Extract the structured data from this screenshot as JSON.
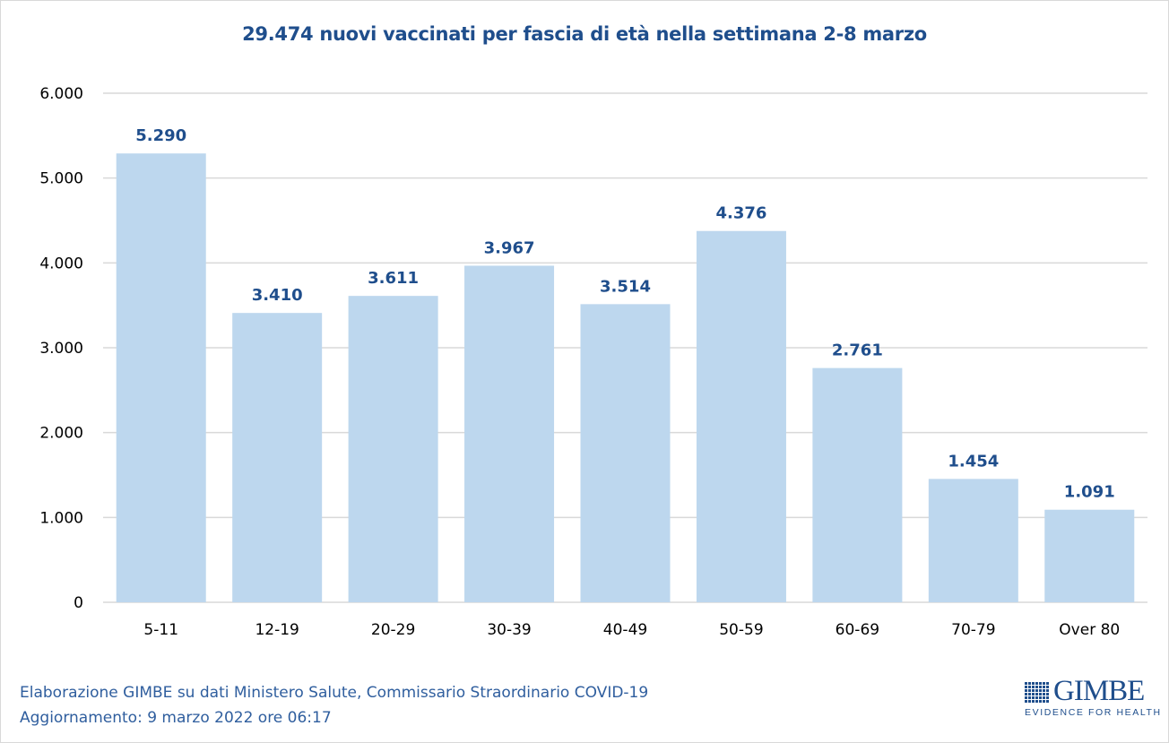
{
  "chart_data": {
    "type": "bar",
    "title": "29.474 nuovi vaccinati per fascia di età nella settimana 2-8 marzo",
    "categories": [
      "5-11",
      "12-19",
      "20-29",
      "30-39",
      "40-49",
      "50-59",
      "60-69",
      "70-79",
      "Over 80"
    ],
    "values": [
      5290,
      3410,
      3611,
      3967,
      3514,
      4376,
      2761,
      1454,
      1091
    ],
    "value_labels": [
      "5.290",
      "3.410",
      "3.611",
      "3.967",
      "3.514",
      "4.376",
      "2.761",
      "1.454",
      "1.091"
    ],
    "ylim": [
      0,
      6000
    ],
    "yticks": [
      0,
      1000,
      2000,
      3000,
      4000,
      5000,
      6000
    ],
    "ytick_labels": [
      "0",
      "1.000",
      "2.000",
      "3.000",
      "4.000",
      "5.000",
      "6.000"
    ],
    "xlabel": "",
    "ylabel": "",
    "grid": true,
    "colors": {
      "bar": "#bdd7ee",
      "label": "#1f4e8c",
      "grid": "#d9d9d9"
    }
  },
  "footer": {
    "line1": "Elaborazione GIMBE su dati Ministero Salute, Commissario Straordinario COVID-19",
    "line2": "Aggiornamento: 9 marzo 2022 ore 06:17"
  },
  "logo": {
    "name": "GIMBE",
    "tagline": "EVIDENCE FOR HEALTH"
  }
}
